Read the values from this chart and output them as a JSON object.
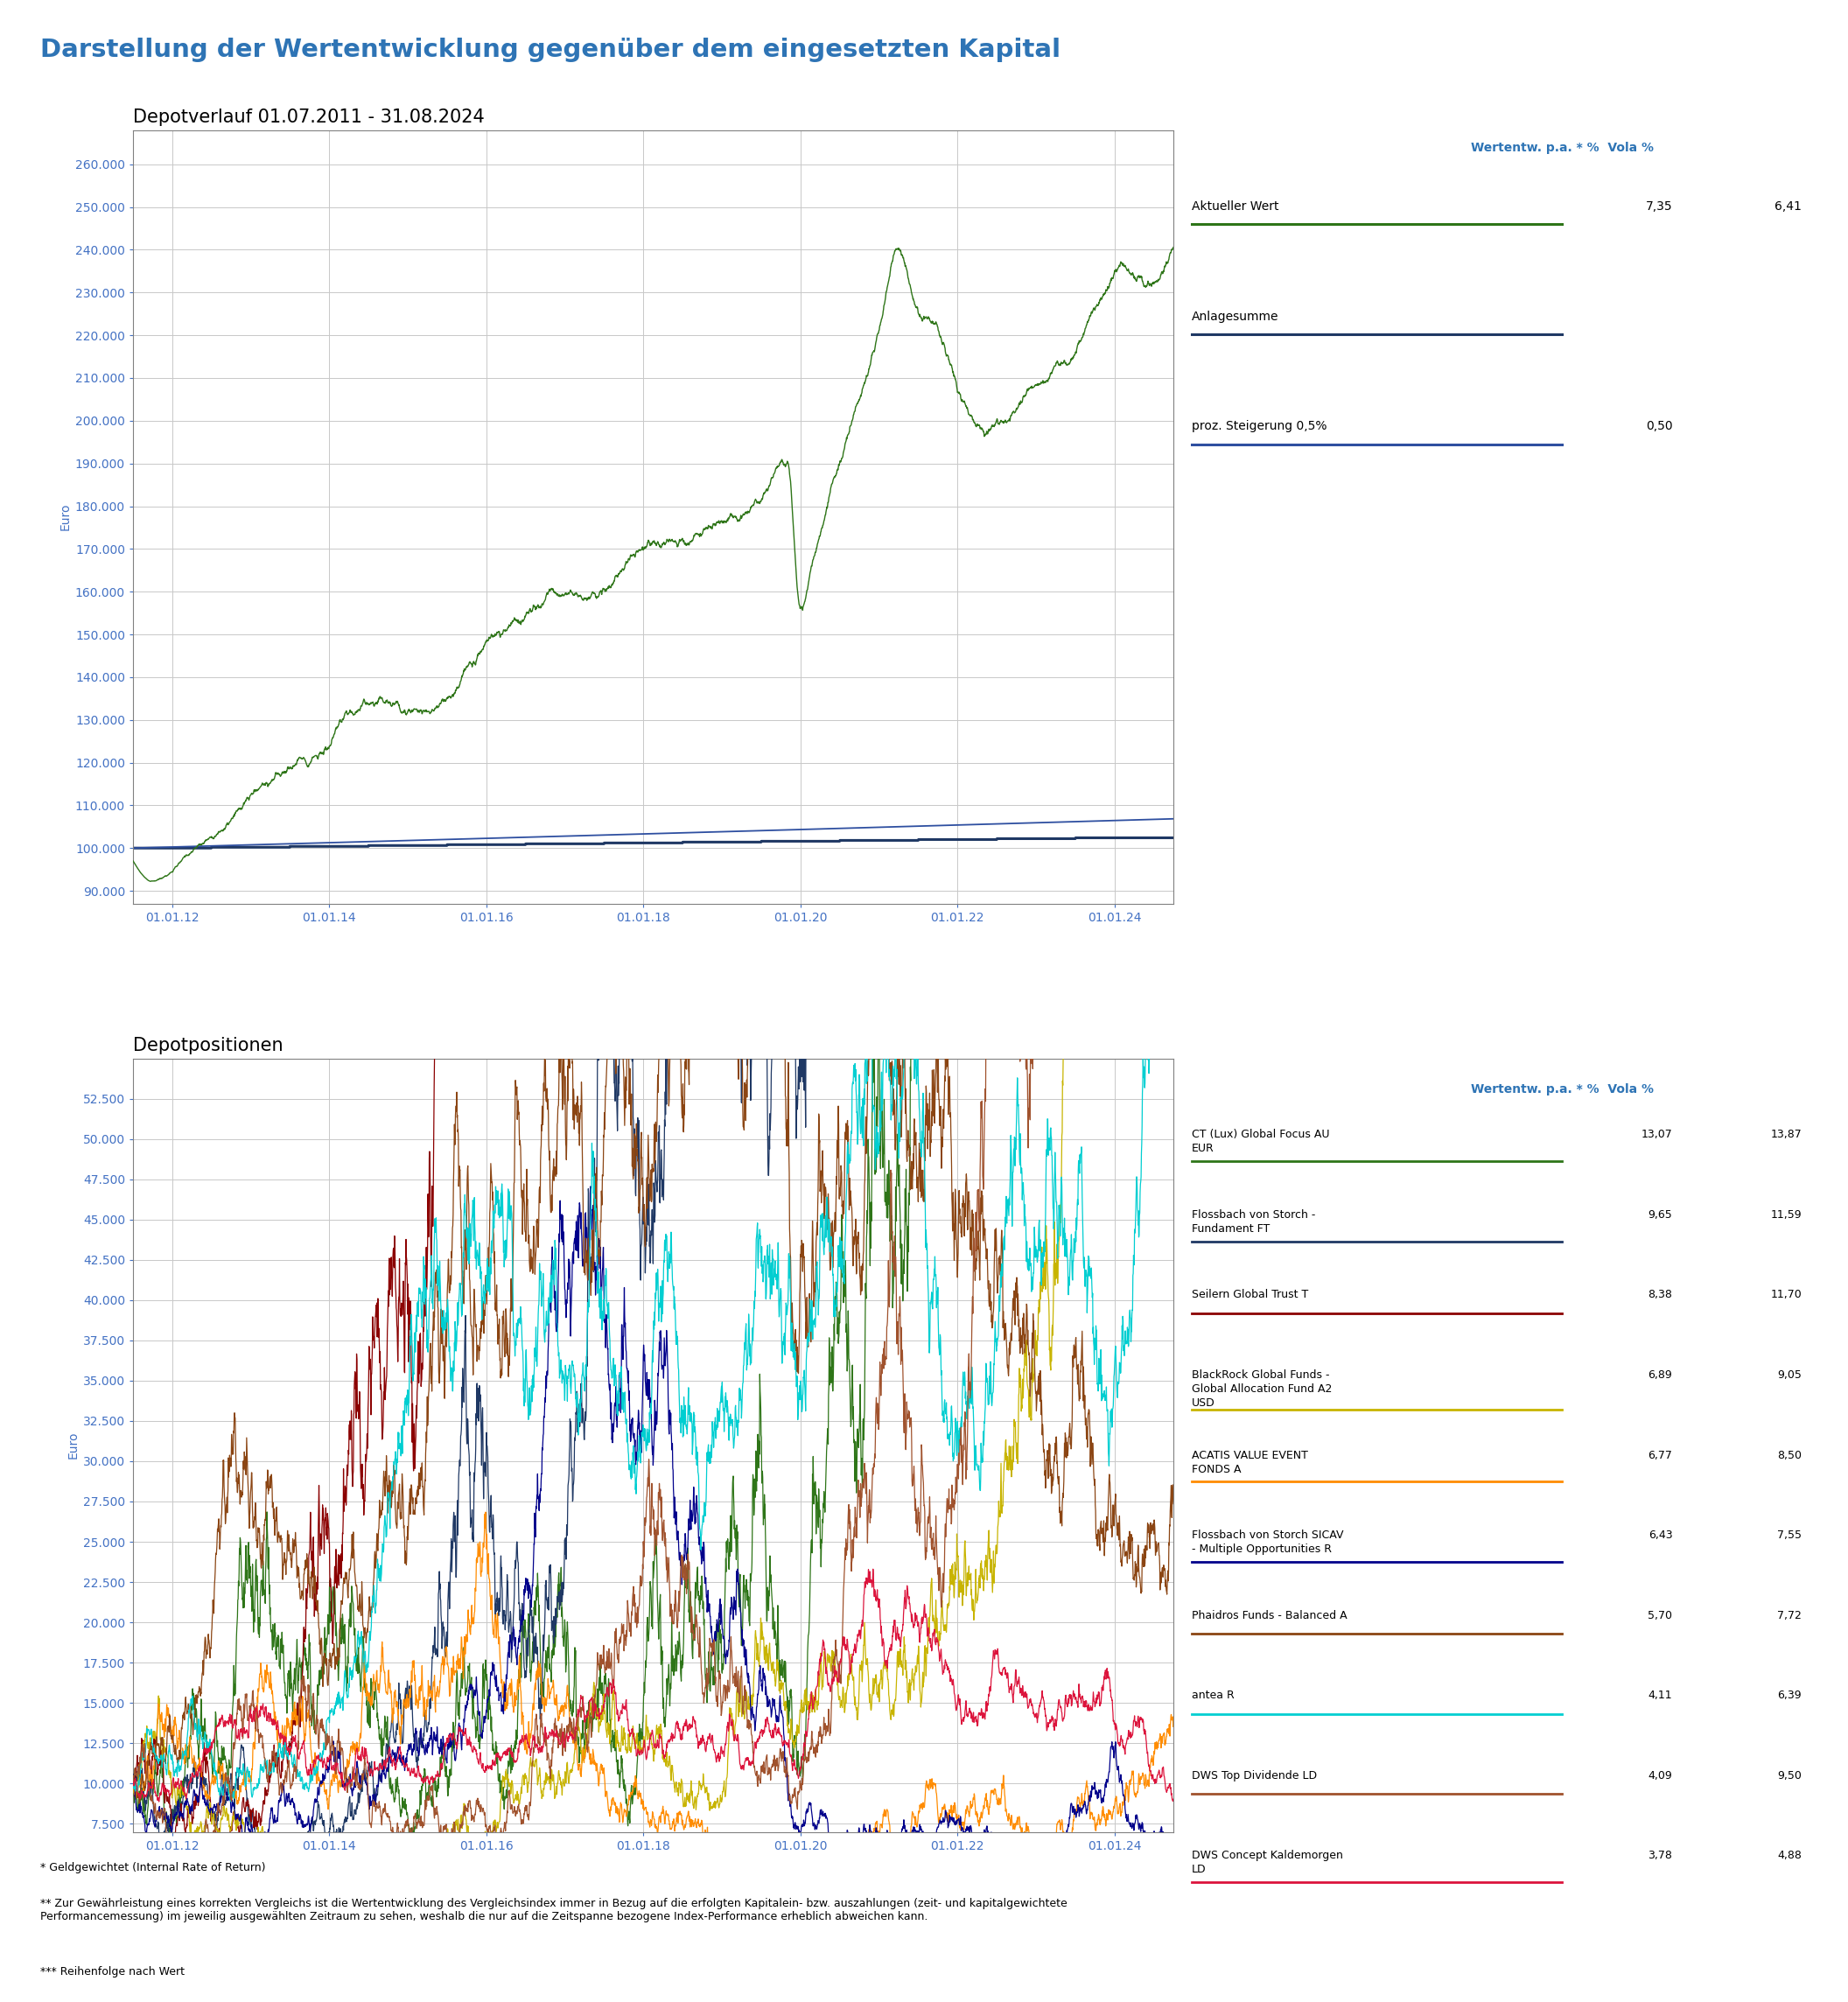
{
  "title": "Darstellung der Wertentwicklung gegenüber dem eingesetzten Kapital",
  "title_color": "#2E74B5",
  "title_fontsize": 21,
  "subtitle1": "Depotverlauf 01.07.2011 - 31.08.2024",
  "subtitle1_fontsize": 15,
  "subtitle2": "Depotpositionen",
  "subtitle2_fontsize": 15,
  "legend_header": "Wertentw. p.a. * %  Vola %",
  "legend_header_color": "#2E74B5",
  "upper_legend": [
    {
      "label": "Aktueller Wert",
      "color": "#2E7518",
      "pa": "7,35",
      "vola": "6,41"
    },
    {
      "label": "Anlagesumme",
      "color": "#1F3864",
      "pa": "",
      "vola": ""
    },
    {
      "label": "proz. Steigerung 0,5%",
      "color": "#2E4FA0",
      "pa": "0,50",
      "vola": ""
    }
  ],
  "lower_legend": [
    {
      "label": "CT (Lux) Global Focus AU\nEUR",
      "color": "#2E7518",
      "pa": "13,07",
      "vola": "13,87"
    },
    {
      "label": "Flossbach von Storch -\nFundament FT",
      "color": "#1F3864",
      "pa": "9,65",
      "vola": "11,59"
    },
    {
      "label": "Seilern Global Trust T",
      "color": "#8B0000",
      "pa": "8,38",
      "vola": "11,70"
    },
    {
      "label": "BlackRock Global Funds -\nGlobal Allocation Fund A2\nUSD",
      "color": "#C8B400",
      "pa": "6,89",
      "vola": "9,05"
    },
    {
      "label": "ACATIS VALUE EVENT\nFONDS A",
      "color": "#FF8C00",
      "pa": "6,77",
      "vola": "8,50"
    },
    {
      "label": "Flossbach von Storch SICAV\n- Multiple Opportunities R",
      "color": "#00008B",
      "pa": "6,43",
      "vola": "7,55"
    },
    {
      "label": "Phaidros Funds - Balanced A",
      "color": "#8B4513",
      "pa": "5,70",
      "vola": "7,72"
    },
    {
      "label": "antea R",
      "color": "#00CED1",
      "pa": "4,11",
      "vola": "6,39"
    },
    {
      "label": "DWS Top Dividende LD",
      "color": "#A0522D",
      "pa": "4,09",
      "vola": "9,50"
    },
    {
      "label": "DWS Concept Kaldemorgen\nLD",
      "color": "#DC143C",
      "pa": "3,78",
      "vola": "4,88"
    }
  ],
  "upper_ylim": [
    87000,
    268000
  ],
  "upper_yticks": [
    90000,
    100000,
    110000,
    120000,
    130000,
    140000,
    150000,
    160000,
    170000,
    180000,
    190000,
    200000,
    210000,
    220000,
    230000,
    240000,
    250000,
    260000
  ],
  "lower_ylim": [
    7000,
    55000
  ],
  "lower_yticks": [
    7500,
    10000,
    12500,
    15000,
    17500,
    20000,
    22500,
    25000,
    27500,
    30000,
    32500,
    35000,
    37500,
    40000,
    42500,
    45000,
    47500,
    50000,
    52500
  ],
  "grid_color": "#C8C8C8",
  "axis_color": "#4472C4",
  "bg_color": "#FFFFFF",
  "plot_bg_color": "#FFFFFF",
  "footnote1": "* Geldgewichtet (Internal Rate of Return)",
  "footnote2": "** Zur Gewährleistung eines korrekten Vergleichs ist die Wertentwicklung des Vergleichsindex immer in Bezug auf die erfolgten Kapitalein- bzw. auszahlungen (zeit- und kapitalgewichtete\nPerformancemessung) im jeweilig ausgewählten Zeitraum zu sehen, weshalb die nur auf die Zeitspanne bezogene Index-Performance erheblich abweichen kann.",
  "footnote3": "*** Reihenfolge nach Wert",
  "xtick_labels": [
    "01.01.12",
    "01.01.14",
    "01.01.16",
    "01.01.18",
    "01.01.20",
    "01.01.22",
    "01.01.24"
  ],
  "xtick_months": [
    6,
    30,
    54,
    78,
    102,
    126,
    150
  ],
  "n_months": 159
}
